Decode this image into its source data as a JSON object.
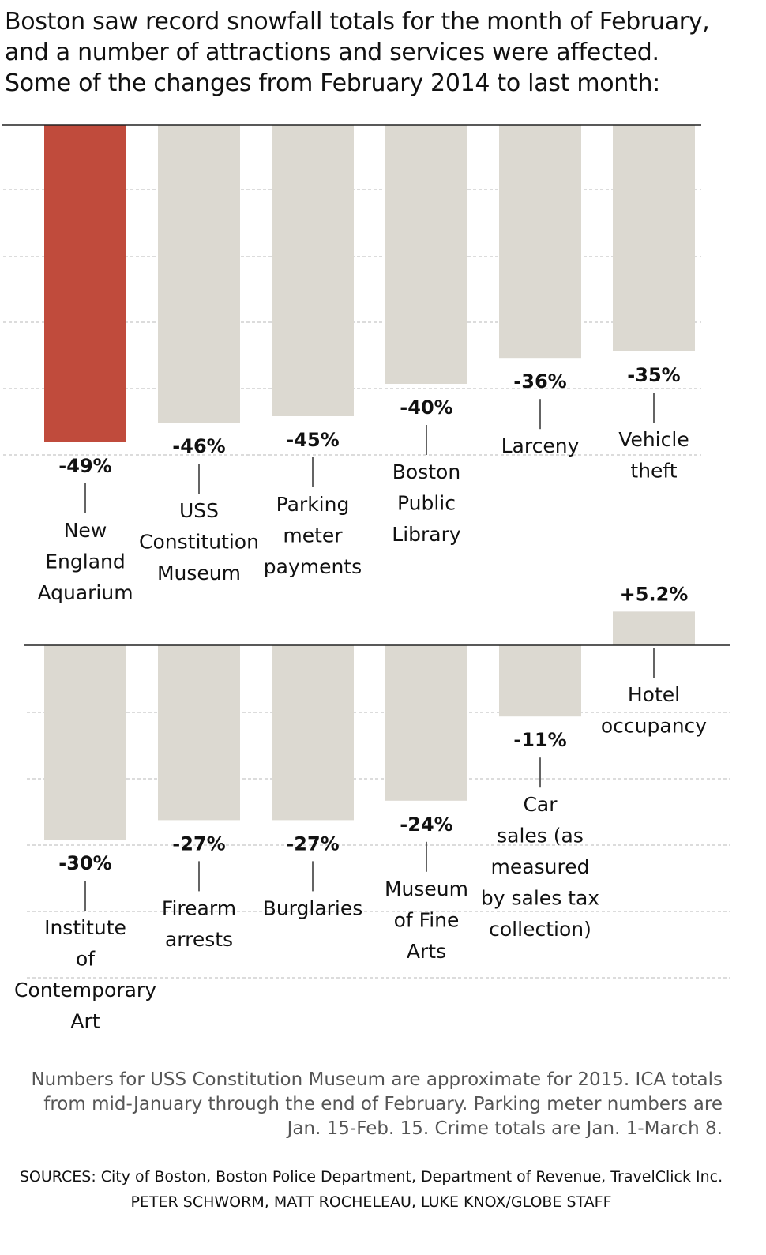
{
  "intro": [
    "Boston saw record snowfall totals for the month of February,",
    "and a number of attractions and services were affected.",
    "Some of the changes from February 2014 to last month:"
  ],
  "colors": {
    "highlight": "#c04b3c",
    "bar": "#dcd9d1",
    "gridline": "#b9b9b9",
    "text": "#111111",
    "note_text": "#555555"
  },
  "chart_data": [
    {
      "type": "bar",
      "ylim": [
        -50,
        0
      ],
      "grid": true,
      "categories": [
        "New England Aquarium",
        "USS Constitution Museum",
        "Parking meter payments",
        "Boston Public Library",
        "Larceny",
        "Vehicle theft"
      ],
      "values": [
        -49,
        -46,
        -45,
        -40,
        -36,
        -35
      ],
      "value_labels": [
        "-49%",
        "-46%",
        "-45%",
        "-40%",
        "-36%",
        "-35%"
      ],
      "label_lines": [
        [
          "New",
          "England",
          "Aquarium"
        ],
        [
          "USS",
          "Constitution",
          "Museum"
        ],
        [
          "Parking",
          "meter",
          "payments"
        ],
        [
          "Boston",
          "Public",
          "Library"
        ],
        [
          "Larceny"
        ],
        [
          "Vehicle",
          "theft"
        ]
      ],
      "highlight": [
        true,
        false,
        false,
        false,
        false,
        false
      ]
    },
    {
      "type": "bar",
      "ylim": [
        -50,
        10
      ],
      "grid": true,
      "categories": [
        "Institute of Contemporary Art",
        "Firearm arrests",
        "Burglaries",
        "Museum of Fine Arts",
        "Car sales (as measured by sales tax collection)",
        "Hotel occupancy"
      ],
      "values": [
        -30,
        -27,
        -27,
        -24,
        -11,
        5.2
      ],
      "value_labels": [
        "-30%",
        "-27%",
        "-27%",
        "-24%",
        "-11%",
        "+5.2%"
      ],
      "label_lines": [
        [
          "Institute",
          "of",
          "Contemporary",
          "Art"
        ],
        [
          "Firearm",
          "arrests"
        ],
        [
          "Burglaries"
        ],
        [
          "Museum",
          "of Fine",
          "Arts"
        ],
        [
          "Car",
          "sales (as",
          "measured",
          "by sales tax",
          "collection)"
        ],
        [
          "Hotel",
          "occupancy"
        ]
      ],
      "highlight": [
        false,
        false,
        false,
        false,
        false,
        false
      ]
    }
  ],
  "notes": [
    "Numbers for USS Constitution Museum are approximate for 2015. ICA totals",
    "from mid-January through the end of February.  Parking meter numbers are",
    "Jan. 15-Feb. 15. Crime totals are Jan. 1-March 8."
  ],
  "sources": "SOURCES: City of Boston, Boston Police Department, Department of Revenue, TravelClick Inc.",
  "credit": "PETER SCHWORM, MATT ROCHELEAU, LUKE KNOX/GLOBE STAFF"
}
